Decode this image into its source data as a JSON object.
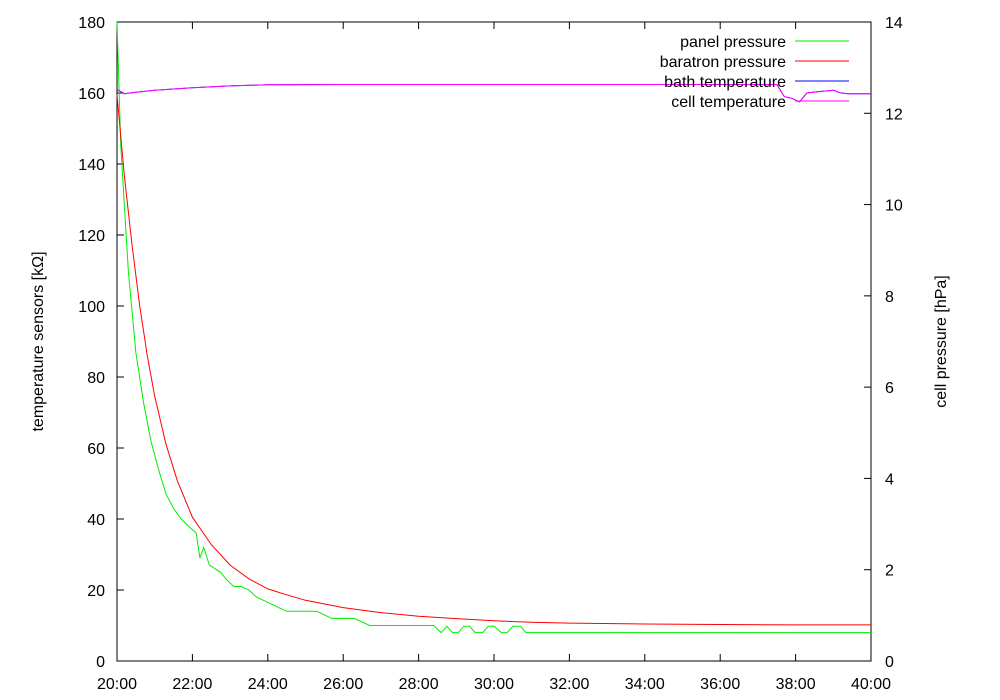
{
  "chart_data": {
    "type": "line",
    "title": "",
    "xlabel": "",
    "ylabel": "temperature sensors [kΩ]",
    "y2label": "cell pressure [hPa]",
    "xlim": [
      20,
      40
    ],
    "ylim": [
      0,
      180
    ],
    "y2lim": [
      0,
      14
    ],
    "x_ticks": [
      20,
      22,
      24,
      26,
      28,
      30,
      32,
      34,
      36,
      38,
      40
    ],
    "x_tick_labels": [
      "20:00",
      "22:00",
      "24:00",
      "26:00",
      "28:00",
      "30:00",
      "32:00",
      "34:00",
      "36:00",
      "38:00",
      "40:00"
    ],
    "y_ticks": [
      0,
      20,
      40,
      60,
      80,
      100,
      120,
      140,
      160,
      180
    ],
    "y_tick_labels": [
      "0",
      "20",
      "40",
      "60",
      "80",
      "100",
      "120",
      "140",
      "160",
      "180"
    ],
    "y2_ticks": [
      0,
      2,
      4,
      6,
      8,
      10,
      12,
      14
    ],
    "y2_tick_labels": [
      "0",
      "2",
      "4",
      "6",
      "8",
      "10",
      "12",
      "14"
    ],
    "grid": false,
    "legend_position": "top-right",
    "series": [
      {
        "name": "panel pressure",
        "color": "#00ee00",
        "axis": "y",
        "x": [
          20.0,
          20.1,
          20.3,
          20.5,
          20.7,
          20.9,
          21.1,
          21.3,
          21.5,
          21.7,
          21.9,
          22.1,
          22.2,
          22.3,
          22.45,
          22.6,
          22.75,
          22.9,
          23.1,
          23.3,
          23.5,
          23.7,
          23.9,
          24.1,
          24.3,
          24.5,
          24.7,
          25.0,
          25.3,
          25.5,
          25.7,
          26.0,
          26.3,
          26.5,
          26.7,
          27.0,
          27.5,
          28.0,
          28.4,
          28.6,
          28.75,
          28.9,
          29.05,
          29.2,
          29.35,
          29.5,
          29.7,
          29.85,
          30.0,
          30.2,
          30.35,
          30.5,
          30.7,
          30.85,
          31.0,
          32.0,
          34.0,
          36.0,
          38.0,
          40.0
        ],
        "y": [
          180,
          145,
          110,
          87,
          73,
          62,
          54,
          47,
          43,
          40,
          38,
          36,
          29,
          32,
          27,
          26,
          25,
          23,
          21,
          21,
          20,
          18,
          17,
          16,
          15,
          14,
          14,
          14,
          14,
          13,
          12,
          12,
          12,
          11,
          10,
          10,
          10,
          10,
          10,
          8,
          9.8,
          8,
          8,
          9.8,
          9.8,
          8,
          8,
          9.8,
          9.8,
          8,
          8,
          9.8,
          9.8,
          8,
          8,
          8,
          8,
          8,
          8,
          8
        ]
      },
      {
        "name": "baratron pressure",
        "color": "#ff0000",
        "axis": "y2",
        "x": [
          20.0,
          20.2,
          20.4,
          20.6,
          20.8,
          21.0,
          21.3,
          21.6,
          22.0,
          22.5,
          23.0,
          23.5,
          24.0,
          24.5,
          25.0,
          26.0,
          27.0,
          28.0,
          29.0,
          30.0,
          31.0,
          32.0,
          34.0,
          36.0,
          38.0,
          40.0
        ],
        "y": [
          12.4,
          10.6,
          9.1,
          7.8,
          6.7,
          5.8,
          4.75,
          3.95,
          3.15,
          2.55,
          2.1,
          1.8,
          1.58,
          1.45,
          1.33,
          1.17,
          1.06,
          0.98,
          0.93,
          0.88,
          0.85,
          0.83,
          0.81,
          0.8,
          0.79,
          0.79
        ]
      },
      {
        "name": "bath temperature",
        "color": "#0000ff",
        "axis": "y",
        "x": [
          20.0,
          20.2,
          20.5,
          21.0,
          22.0,
          23.0,
          24.0,
          26.0,
          28.0,
          30.0,
          32.0,
          34.0,
          36.0,
          37.5,
          37.7,
          37.9,
          38.1,
          38.3,
          38.6,
          39.0,
          39.2,
          39.4,
          40.0
        ],
        "y": [
          161,
          159.8,
          160.2,
          160.8,
          161.5,
          162,
          162.3,
          162.4,
          162.4,
          162.4,
          162.4,
          162.4,
          162.4,
          162.4,
          159,
          158.5,
          157.5,
          160,
          160.4,
          160.8,
          160,
          159.8,
          159.8
        ]
      },
      {
        "name": "cell temperature",
        "color": "#ff00ff",
        "axis": "y",
        "x": [
          20.0,
          20.2,
          20.5,
          21.0,
          22.0,
          23.0,
          24.0,
          26.0,
          28.0,
          30.0,
          32.0,
          34.0,
          36.0,
          37.5,
          37.7,
          37.9,
          38.1,
          38.3,
          38.6,
          39.0,
          39.2,
          39.4,
          40.0
        ],
        "y": [
          161,
          159.8,
          160.2,
          160.8,
          161.5,
          162,
          162.3,
          162.4,
          162.4,
          162.4,
          162.4,
          162.4,
          162.4,
          162.4,
          159,
          158.5,
          157.5,
          160,
          160.4,
          160.8,
          160,
          159.8,
          159.8
        ]
      }
    ]
  }
}
